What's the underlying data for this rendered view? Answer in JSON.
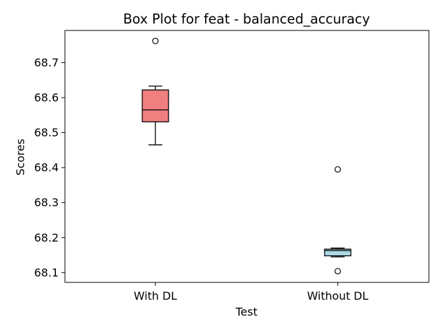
{
  "chart_data": {
    "type": "box",
    "title": "Box Plot for feat - balanced_accuracy",
    "xlabel": "Test",
    "ylabel": "Scores",
    "ylim": [
      68.072,
      68.792
    ],
    "yticks": [
      68.1,
      68.2,
      68.3,
      68.4,
      68.5,
      68.6,
      68.7
    ],
    "ytick_labels": [
      "68.1",
      "68.2",
      "68.3",
      "68.4",
      "68.5",
      "68.6",
      "68.7"
    ],
    "categories": [
      "With DL",
      "Without DL"
    ],
    "boxes": [
      {
        "label": "With DL",
        "whisker_low": 68.465,
        "q1": 68.531,
        "median": 68.565,
        "q3": 68.622,
        "whisker_high": 68.633,
        "outliers": [
          68.762
        ],
        "color": "#f08080"
      },
      {
        "label": "Without DL",
        "whisker_low": 68.145,
        "q1": 68.148,
        "median": 68.163,
        "q3": 68.167,
        "whisker_high": 68.17,
        "outliers": [
          68.395,
          68.104
        ],
        "color": "#add8e6"
      }
    ],
    "grid": false,
    "legend": false
  }
}
